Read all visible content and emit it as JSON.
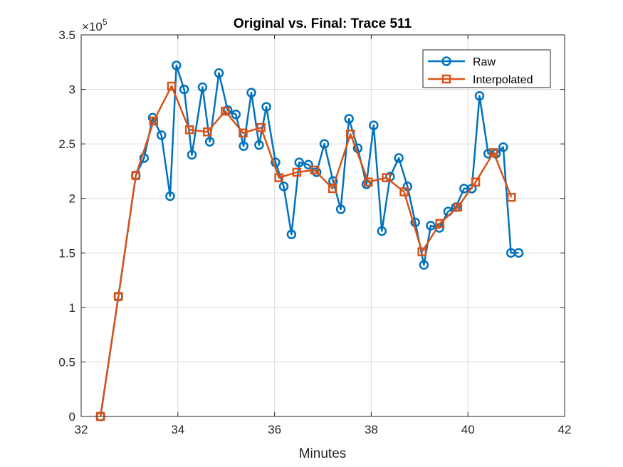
{
  "chart_data": {
    "type": "line",
    "title": "Original vs. Final: Trace 511",
    "xlabel": "Minutes",
    "ylabel": "",
    "xlim": [
      32,
      42
    ],
    "ylim": [
      0,
      350000
    ],
    "x_ticks": [
      32,
      34,
      36,
      38,
      40,
      42
    ],
    "x_tick_labels": [
      "32",
      "34",
      "36",
      "38",
      "40",
      "42"
    ],
    "y_ticks": [
      0,
      50000,
      100000,
      150000,
      200000,
      250000,
      300000,
      350000
    ],
    "y_tick_labels": [
      "0",
      "0.5",
      "1",
      "1.5",
      "2",
      "2.5",
      "3",
      "3.5"
    ],
    "y_exponent_base": "×10",
    "y_exponent_power": "5",
    "grid": true,
    "legend_position": "top-right",
    "series": [
      {
        "name": "Raw",
        "color": "#0072BD",
        "marker": "circle",
        "x": [
          32.4,
          32.77,
          33.13,
          33.3,
          33.48,
          33.66,
          33.84,
          33.97,
          34.13,
          34.29,
          34.51,
          34.66,
          34.85,
          35.03,
          35.2,
          35.36,
          35.52,
          35.68,
          35.83,
          36.02,
          36.19,
          36.35,
          36.51,
          36.7,
          36.87,
          37.03,
          37.21,
          37.37,
          37.54,
          37.72,
          37.9,
          38.05,
          38.22,
          38.39,
          38.57,
          38.75,
          38.91,
          39.09,
          39.23,
          39.41,
          39.59,
          39.75,
          39.92,
          40.08,
          40.24,
          40.42,
          40.58,
          40.73,
          40.89,
          41.05
        ],
        "y": [
          0,
          110000,
          221000,
          237000,
          274000,
          258000,
          202000,
          322000,
          300000,
          240000,
          302000,
          252000,
          315000,
          281000,
          277000,
          248000,
          297000,
          249000,
          284000,
          233000,
          211000,
          167000,
          233000,
          231000,
          224000,
          250000,
          216000,
          190000,
          273000,
          246000,
          213000,
          267000,
          170000,
          220000,
          237000,
          211000,
          178000,
          139000,
          175000,
          173000,
          188000,
          192000,
          209000,
          209000,
          294000,
          241000,
          241000,
          247000,
          150000,
          150000
        ]
      },
      {
        "name": "Interpolated",
        "color": "#D95319",
        "marker": "square",
        "x": [
          32.4,
          32.77,
          33.13,
          33.5,
          33.87,
          34.24,
          34.61,
          34.98,
          35.35,
          35.72,
          36.09,
          36.46,
          36.83,
          37.2,
          37.57,
          37.94,
          38.31,
          38.68,
          39.05,
          39.42,
          39.79,
          40.16,
          40.53,
          40.9
        ],
        "y": [
          0,
          110000,
          221000,
          271000,
          303000,
          263000,
          261000,
          280000,
          260000,
          265000,
          219000,
          224000,
          226000,
          209000,
          259000,
          215000,
          219000,
          206000,
          151000,
          177000,
          192000,
          215000,
          242000,
          201000
        ]
      }
    ]
  }
}
